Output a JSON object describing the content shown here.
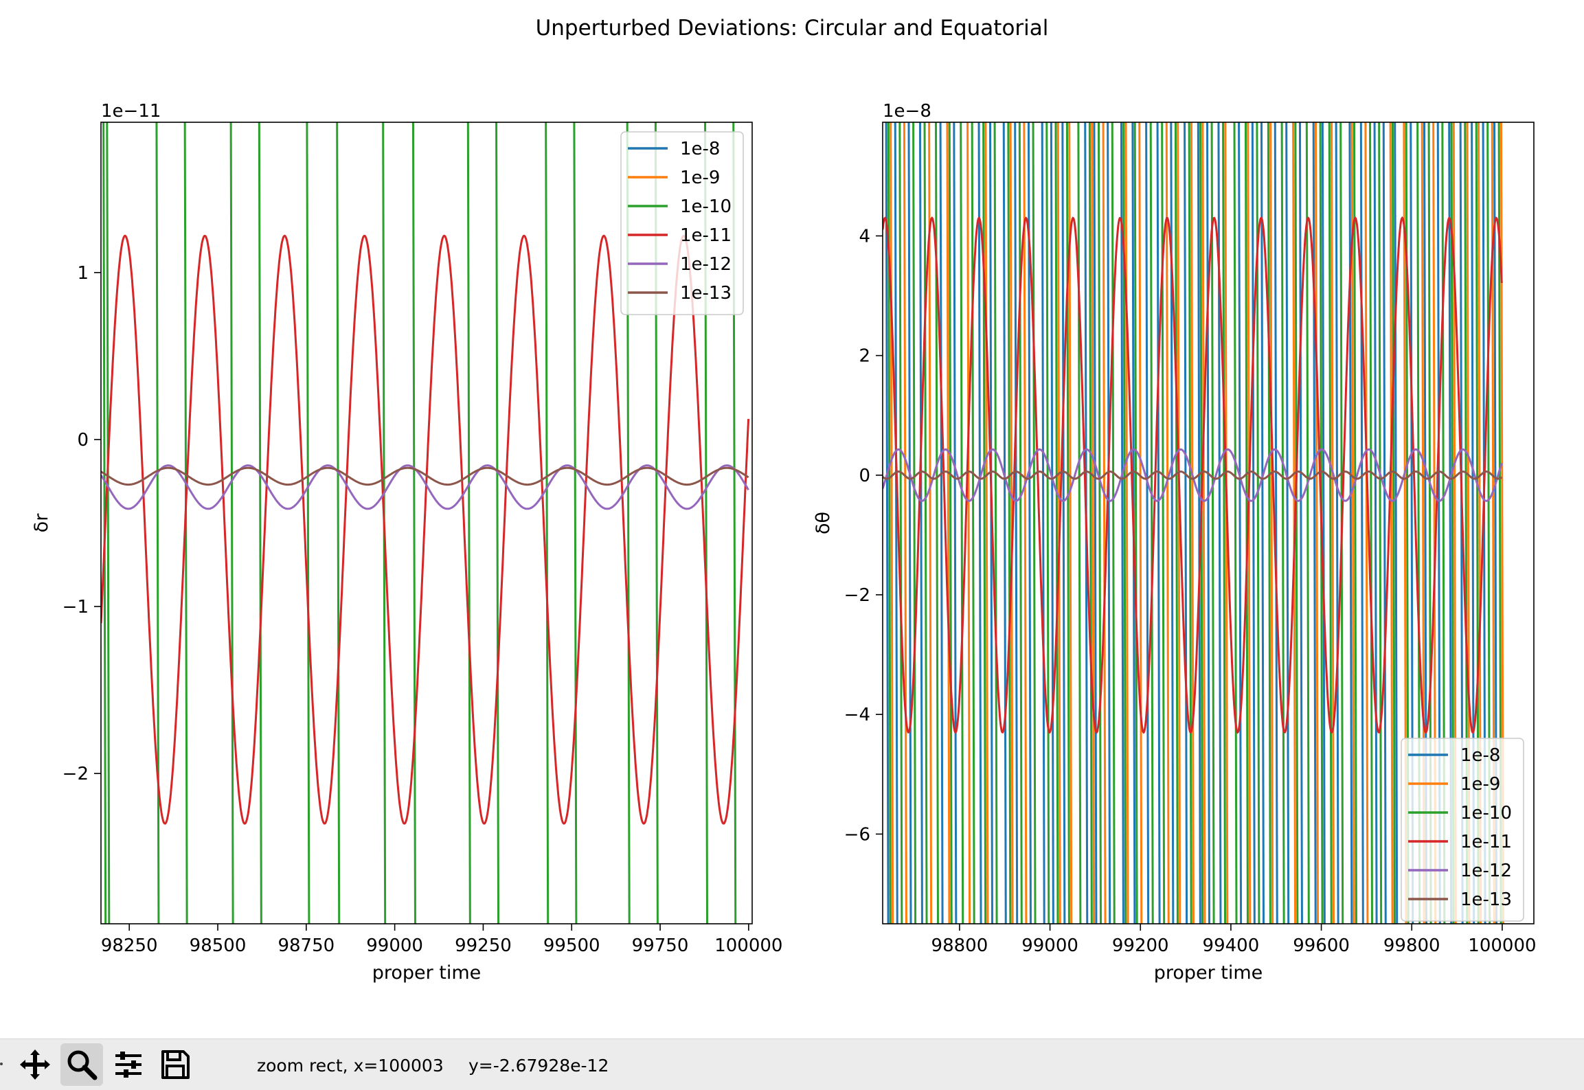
{
  "figure": {
    "title": "Unperturbed Deviations: Circular and Equatorial"
  },
  "chart_data": [
    {
      "type": "line",
      "xlabel": "proper time",
      "ylabel": "δr",
      "offset_text": "1e−11",
      "xlim": [
        98170,
        100010
      ],
      "ylim": [
        -2.9,
        1.9
      ],
      "x_ticks": [
        98250,
        98500,
        98750,
        99000,
        99250,
        99500,
        99750,
        100000
      ],
      "y_ticks": [
        -2,
        -1,
        0,
        1
      ],
      "y_tick_labels": [
        "−2",
        "−1",
        "0",
        "1"
      ],
      "legend": {
        "loc": "upper right",
        "entries": [
          "1e-8",
          "1e-9",
          "1e-10",
          "1e-11",
          "1e-12",
          "1e-13"
        ]
      },
      "series": [
        {
          "name": "1e-8",
          "color": "#1f77b4",
          "shape": "offscale",
          "note": "off scale"
        },
        {
          "name": "1e-9",
          "color": "#ff7f0e",
          "shape": "offscale"
        },
        {
          "name": "1e-10",
          "color": "#2ca02c",
          "shape": "crossings",
          "crossings": [
            98180,
            98190,
            98330,
            98410,
            98540,
            98620,
            98755,
            98840,
            98970,
            99055,
            99210,
            99290,
            99430,
            99510,
            99660,
            99740,
            99880,
            99960
          ]
        },
        {
          "name": "1e-11",
          "color": "#d62728",
          "shape": "sine",
          "center": -0.54,
          "amplitude": 1.76,
          "period": 225.5,
          "peak_at": 98238
        },
        {
          "name": "1e-12",
          "color": "#9467bd",
          "shape": "sine",
          "center": -0.285,
          "amplitude": 0.13,
          "period": 225.5,
          "peak_at": 98360
        },
        {
          "name": "1e-13",
          "color": "#8c564b",
          "shape": "sine",
          "center": -0.22,
          "amplitude": 0.05,
          "period": 225.5,
          "peak_at": 98360
        }
      ]
    },
    {
      "type": "line",
      "xlabel": "proper time",
      "ylabel": "δθ",
      "offset_text": "1e−8",
      "xlim": [
        98630,
        100070
      ],
      "ylim": [
        -7.5,
        5.9
      ],
      "x_ticks": [
        98800,
        99000,
        99200,
        99400,
        99600,
        99800,
        100000
      ],
      "y_ticks": [
        -6,
        -4,
        -2,
        0,
        2,
        4
      ],
      "y_tick_labels": [
        "−6",
        "−4",
        "−2",
        "0",
        "2",
        "4"
      ],
      "legend": {
        "loc": "lower right",
        "entries": [
          "1e-8",
          "1e-9",
          "1e-10",
          "1e-11",
          "1e-12",
          "1e-13"
        ]
      },
      "series": [
        {
          "name": "1e-8",
          "color": "#1f77b4",
          "shape": "crossings",
          "crossings": [
            98640,
            98660,
            98690,
            98715,
            98760,
            98790,
            98845,
            98870,
            98900,
            98925,
            98955,
            98985,
            99005,
            99030,
            99080,
            99100,
            99130,
            99160,
            99185,
            99215,
            99240,
            99270,
            99300,
            99330,
            99350,
            99375,
            99420,
            99450,
            99470,
            99500,
            99525,
            99555,
            99585,
            99605,
            99635,
            99665,
            99690,
            99720,
            99740,
            99765,
            99800,
            99830,
            99860,
            99885,
            99910,
            99935,
            99960,
            99985
          ]
        },
        {
          "name": "1e-9",
          "color": "#ff7f0e",
          "shape": "crossings",
          "crossings": [
            98650,
            98680,
            98735,
            98775,
            98820,
            98860,
            98915,
            98945,
            99020,
            99045,
            99095,
            99120,
            99170,
            99200,
            99260,
            99285,
            99315,
            99340,
            99390,
            99440,
            99490,
            99540,
            99590,
            99625,
            99670,
            99700,
            99755,
            99785,
            99825,
            99850,
            99895,
            99925,
            99950,
            99980,
            100000
          ]
        },
        {
          "name": "1e-10",
          "color": "#2ca02c",
          "shape": "crossings",
          "crossings": [
            98645,
            98670,
            98700,
            98725,
            98750,
            98780,
            98805,
            98830,
            98855,
            98880,
            98910,
            98935,
            98965,
            98995,
            99015,
            99040,
            99065,
            99090,
            99110,
            99140,
            99165,
            99190,
            99225,
            99250,
            99280,
            99310,
            99335,
            99360,
            99385,
            99410,
            99435,
            99460,
            99485,
            99515,
            99545,
            99570,
            99600,
            99620,
            99645,
            99675,
            99710,
            99730,
            99760,
            99790,
            99815,
            99840,
            99870,
            99890,
            99920,
            99945,
            99970,
            99995
          ]
        },
        {
          "name": "1e-11",
          "color": "#d62728",
          "shape": "sine",
          "center": 0.0,
          "amplitude": 4.3,
          "period": 104,
          "peak_at": 98635
        },
        {
          "name": "1e-12",
          "color": "#9467bd",
          "shape": "sine",
          "center": 0.0,
          "amplitude": 0.43,
          "period": 104,
          "peak_at": 98665
        },
        {
          "name": "1e-13",
          "color": "#8c564b",
          "shape": "sine",
          "center": 0.0,
          "amplitude": 0.06,
          "period": 52,
          "peak_at": 98665
        }
      ]
    }
  ],
  "toolbar": {
    "buttons": [
      {
        "icon": "move-icon",
        "label": "Pan"
      },
      {
        "icon": "zoom-icon",
        "label": "Zoom",
        "active": true
      },
      {
        "icon": "sliders-icon",
        "label": "Subplots"
      },
      {
        "icon": "save-icon",
        "label": "Save"
      }
    ],
    "mode_text": "zoom rect, x=100003",
    "y_text": "y=-2.67928e-12"
  }
}
